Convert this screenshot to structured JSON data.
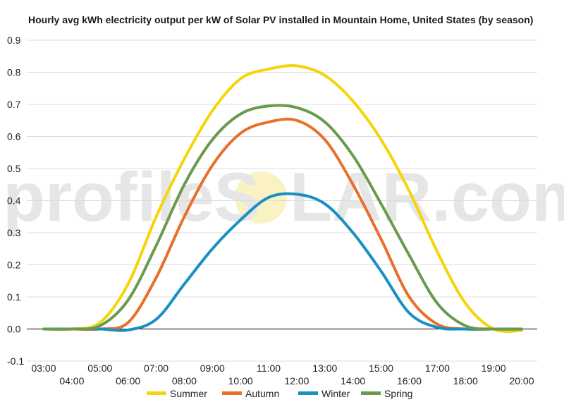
{
  "chart_data": {
    "type": "line",
    "title": "Hourly avg kWh electricity output per kW of Solar PV installed in Mountain Home, United States (by season)",
    "watermark": {
      "left": "profileS",
      "right": "LAR.com",
      "sun_color": "#f7e27a"
    },
    "x": [
      "03:00",
      "04:00",
      "05:00",
      "06:00",
      "07:00",
      "08:00",
      "09:00",
      "10:00",
      "11:00",
      "12:00",
      "13:00",
      "14:00",
      "15:00",
      "16:00",
      "17:00",
      "18:00",
      "19:00",
      "20:00"
    ],
    "xlim": [
      3,
      20
    ],
    "ylim": [
      -0.1,
      0.9
    ],
    "yticks": [
      "-0.1",
      "0.0",
      "0.1",
      "0.2",
      "0.3",
      "0.4",
      "0.5",
      "0.6",
      "0.7",
      "0.8",
      "0.9"
    ],
    "grid": true,
    "legend_position": "bottom",
    "series": [
      {
        "name": "Summer",
        "color": "#f5d50a",
        "values": [
          0.0,
          0.0,
          0.02,
          0.14,
          0.35,
          0.53,
          0.68,
          0.78,
          0.81,
          0.82,
          0.79,
          0.71,
          0.59,
          0.43,
          0.24,
          0.08,
          0.0,
          -0.005
        ]
      },
      {
        "name": "Autumn",
        "color": "#e8702a",
        "values": [
          0.0,
          0.0,
          0.0,
          0.02,
          0.16,
          0.35,
          0.51,
          0.61,
          0.645,
          0.65,
          0.59,
          0.45,
          0.28,
          0.1,
          0.015,
          0.0,
          0.0,
          0.0
        ]
      },
      {
        "name": "Winter",
        "color": "#1a8fc2",
        "values": [
          0.0,
          0.0,
          0.0,
          -0.003,
          0.03,
          0.14,
          0.25,
          0.34,
          0.41,
          0.42,
          0.39,
          0.3,
          0.18,
          0.05,
          0.005,
          0.0,
          0.0,
          0.0
        ]
      },
      {
        "name": "Spring",
        "color": "#6a9a4b",
        "values": [
          0.0,
          0.0,
          0.01,
          0.09,
          0.26,
          0.45,
          0.59,
          0.67,
          0.695,
          0.69,
          0.645,
          0.54,
          0.39,
          0.23,
          0.08,
          0.01,
          0.0,
          0.0
        ]
      }
    ]
  }
}
